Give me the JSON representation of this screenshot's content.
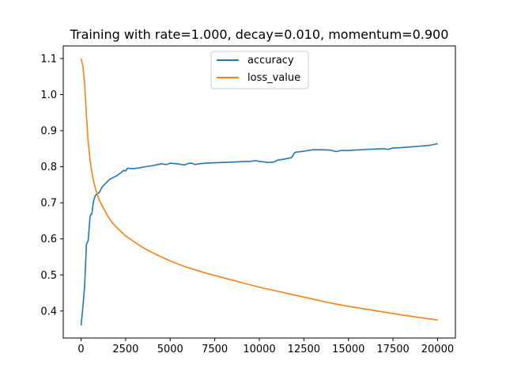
{
  "chart_data": {
    "type": "line",
    "title": "Training with rate=1.000, decay=0.010, momentum=0.900",
    "xlabel": "",
    "ylabel": "",
    "xlim": [
      -1000,
      21000
    ],
    "ylim": [
      0.325,
      1.135
    ],
    "xticks": [
      0,
      2500,
      5000,
      7500,
      10000,
      12500,
      15000,
      17500,
      20000
    ],
    "yticks": [
      0.4,
      0.5,
      0.6,
      0.7,
      0.8,
      0.9,
      1.0,
      1.1
    ],
    "grid": false,
    "legend": "top-center",
    "series": [
      {
        "name": "accuracy",
        "color": "#1f77b4",
        "x": [
          0,
          100,
          200,
          300,
          400,
          500,
          550,
          600,
          700,
          800,
          900,
          1000,
          1200,
          1400,
          1600,
          1800,
          2000,
          2200,
          2300,
          2400,
          2500,
          2600,
          2800,
          3000,
          3300,
          3600,
          4000,
          4500,
          4800,
          5000,
          5400,
          5800,
          6000,
          6200,
          6400,
          6600,
          7000,
          7500,
          8000,
          8500,
          9000,
          9500,
          9800,
          10000,
          10500,
          10800,
          11000,
          11500,
          11800,
          12000,
          12500,
          13000,
          13500,
          14000,
          14300,
          14600,
          15000,
          16000,
          16500,
          17000,
          17200,
          17500,
          18000,
          18500,
          19000,
          19500,
          19800,
          20000
        ],
        "values": [
          0.36,
          0.41,
          0.47,
          0.585,
          0.595,
          0.66,
          0.668,
          0.668,
          0.705,
          0.72,
          0.725,
          0.727,
          0.745,
          0.755,
          0.765,
          0.77,
          0.775,
          0.782,
          0.786,
          0.79,
          0.788,
          0.796,
          0.795,
          0.795,
          0.797,
          0.8,
          0.803,
          0.808,
          0.806,
          0.81,
          0.808,
          0.805,
          0.809,
          0.81,
          0.806,
          0.808,
          0.81,
          0.811,
          0.812,
          0.813,
          0.814,
          0.815,
          0.817,
          0.815,
          0.812,
          0.813,
          0.818,
          0.822,
          0.825,
          0.84,
          0.843,
          0.847,
          0.847,
          0.846,
          0.842,
          0.845,
          0.845,
          0.848,
          0.849,
          0.85,
          0.848,
          0.852,
          0.853,
          0.855,
          0.857,
          0.859,
          0.862,
          0.864
        ]
      },
      {
        "name": "loss_value",
        "color": "#ff7f0e",
        "x": [
          0,
          100,
          200,
          300,
          400,
          500,
          600,
          700,
          800,
          900,
          1000,
          1200,
          1400,
          1600,
          1800,
          2000,
          2200,
          2500,
          2800,
          3000,
          3500,
          4000,
          4500,
          5000,
          5500,
          6000,
          7000,
          8000,
          9000,
          10000,
          11000,
          12000,
          13000,
          14000,
          15000,
          16000,
          17000,
          18000,
          19000,
          20000
        ],
        "values": [
          1.1,
          1.08,
          1.03,
          0.94,
          0.87,
          0.82,
          0.785,
          0.76,
          0.74,
          0.725,
          0.71,
          0.69,
          0.672,
          0.655,
          0.642,
          0.632,
          0.622,
          0.608,
          0.598,
          0.591,
          0.575,
          0.562,
          0.55,
          0.539,
          0.529,
          0.52,
          0.505,
          0.492,
          0.479,
          0.466,
          0.455,
          0.444,
          0.433,
          0.422,
          0.413,
          0.405,
          0.397,
          0.389,
          0.382,
          0.375
        ]
      }
    ]
  }
}
